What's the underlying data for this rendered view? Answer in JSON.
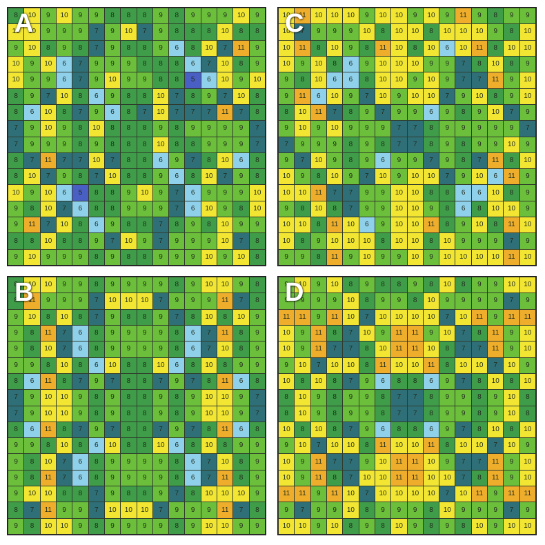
{
  "colors": {
    "5": "#4a5fc4",
    "6": "#8fd0ea",
    "7": "#2f7078",
    "8": "#3f9c48",
    "9": "#6cbf3a",
    "10": "#f2e633",
    "11": "#eeae2c"
  },
  "panels": [
    {
      "label": "A",
      "grid": [
        [
          8,
          10,
          9,
          10,
          9,
          9,
          8,
          8,
          8,
          9,
          8,
          9,
          9,
          9,
          10,
          9
        ],
        [
          10,
          10,
          9,
          9,
          9,
          7,
          9,
          10,
          7,
          9,
          8,
          8,
          8,
          10,
          8,
          8
        ],
        [
          9,
          10,
          8,
          9,
          8,
          7,
          9,
          8,
          8,
          9,
          6,
          8,
          10,
          7,
          11,
          9
        ],
        [
          10,
          9,
          10,
          6,
          7,
          9,
          9,
          9,
          8,
          8,
          8,
          6,
          7,
          10,
          8,
          9
        ],
        [
          10,
          9,
          9,
          6,
          7,
          9,
          10,
          9,
          9,
          8,
          8,
          5,
          6,
          10,
          9,
          10
        ],
        [
          8,
          9,
          7,
          10,
          8,
          6,
          9,
          8,
          8,
          10,
          7,
          8,
          9,
          7,
          10,
          8
        ],
        [
          8,
          6,
          10,
          8,
          7,
          9,
          6,
          8,
          7,
          10,
          7,
          7,
          7,
          11,
          7,
          8
        ],
        [
          7,
          9,
          10,
          9,
          8,
          10,
          8,
          8,
          8,
          9,
          8,
          9,
          9,
          9,
          9,
          7
        ],
        [
          7,
          9,
          9,
          9,
          8,
          9,
          8,
          8,
          8,
          10,
          8,
          8,
          9,
          9,
          9,
          7
        ],
        [
          8,
          7,
          11,
          7,
          7,
          10,
          7,
          8,
          8,
          6,
          9,
          7,
          8,
          10,
          6,
          8
        ],
        [
          8,
          10,
          7,
          9,
          8,
          7,
          10,
          8,
          8,
          9,
          6,
          8,
          10,
          7,
          9,
          8
        ],
        [
          10,
          9,
          10,
          6,
          5,
          8,
          8,
          9,
          10,
          9,
          7,
          6,
          9,
          9,
          9,
          10
        ],
        [
          9,
          8,
          10,
          7,
          6,
          8,
          8,
          9,
          9,
          9,
          7,
          6,
          10,
          9,
          8,
          10
        ],
        [
          9,
          11,
          7,
          10,
          8,
          6,
          9,
          8,
          8,
          7,
          8,
          9,
          8,
          10,
          9,
          9
        ],
        [
          8,
          8,
          10,
          8,
          8,
          9,
          7,
          10,
          9,
          7,
          9,
          9,
          9,
          10,
          7,
          8
        ],
        [
          9,
          10,
          9,
          9,
          9,
          8,
          9,
          8,
          8,
          9,
          9,
          9,
          10,
          9,
          10,
          8
        ]
      ]
    },
    {
      "label": "C",
      "grid": [
        [
          10,
          11,
          10,
          10,
          10,
          9,
          10,
          10,
          9,
          10,
          9,
          11,
          9,
          8,
          9,
          9
        ],
        [
          10,
          7,
          9,
          9,
          9,
          10,
          8,
          10,
          10,
          8,
          10,
          10,
          10,
          9,
          8,
          10
        ],
        [
          10,
          11,
          8,
          10,
          9,
          8,
          11,
          10,
          8,
          10,
          6,
          10,
          11,
          8,
          10,
          10
        ],
        [
          10,
          9,
          10,
          8,
          6,
          9,
          10,
          10,
          10,
          9,
          9,
          7,
          8,
          10,
          8,
          9
        ],
        [
          9,
          8,
          10,
          6,
          6,
          8,
          10,
          10,
          9,
          10,
          9,
          7,
          7,
          11,
          9,
          10
        ],
        [
          9,
          11,
          6,
          10,
          9,
          7,
          10,
          9,
          10,
          10,
          7,
          9,
          10,
          8,
          9,
          10
        ],
        [
          8,
          10,
          11,
          7,
          8,
          9,
          7,
          9,
          9,
          6,
          9,
          8,
          9,
          10,
          7,
          9
        ],
        [
          9,
          10,
          9,
          10,
          9,
          9,
          9,
          7,
          7,
          8,
          9,
          9,
          9,
          9,
          9,
          7
        ],
        [
          7,
          9,
          9,
          9,
          8,
          9,
          8,
          7,
          7,
          8,
          9,
          8,
          9,
          9,
          10,
          9
        ],
        [
          9,
          7,
          10,
          9,
          8,
          9,
          6,
          9,
          9,
          7,
          9,
          8,
          7,
          11,
          8,
          10
        ],
        [
          10,
          9,
          8,
          10,
          9,
          7,
          10,
          9,
          10,
          10,
          7,
          9,
          10,
          6,
          11,
          9
        ],
        [
          10,
          10,
          11,
          7,
          7,
          9,
          9,
          10,
          10,
          8,
          8,
          6,
          6,
          10,
          8,
          9
        ],
        [
          9,
          8,
          10,
          8,
          7,
          9,
          9,
          10,
          10,
          9,
          8,
          6,
          8,
          10,
          10,
          9
        ],
        [
          10,
          10,
          8,
          11,
          10,
          6,
          9,
          10,
          10,
          11,
          8,
          9,
          10,
          8,
          11,
          10
        ],
        [
          10,
          8,
          9,
          10,
          10,
          10,
          8,
          10,
          10,
          8,
          10,
          9,
          9,
          9,
          7,
          9
        ],
        [
          9,
          9,
          8,
          11,
          9,
          10,
          9,
          9,
          10,
          9,
          10,
          10,
          10,
          10,
          11,
          10
        ]
      ]
    },
    {
      "label": "B",
      "grid": [
        [
          8,
          10,
          10,
          9,
          9,
          8,
          9,
          9,
          9,
          9,
          8,
          9,
          10,
          10,
          9,
          8
        ],
        [
          8,
          11,
          9,
          9,
          9,
          7,
          10,
          10,
          10,
          7,
          9,
          9,
          9,
          11,
          7,
          8
        ],
        [
          9,
          10,
          8,
          10,
          8,
          7,
          9,
          8,
          8,
          9,
          7,
          8,
          10,
          8,
          10,
          9
        ],
        [
          9,
          8,
          11,
          7,
          6,
          8,
          9,
          9,
          9,
          9,
          8,
          6,
          7,
          11,
          8,
          9
        ],
        [
          9,
          8,
          10,
          7,
          6,
          8,
          9,
          9,
          9,
          9,
          8,
          6,
          7,
          10,
          8,
          9
        ],
        [
          9,
          9,
          8,
          10,
          8,
          6,
          10,
          8,
          8,
          10,
          6,
          8,
          10,
          8,
          9,
          9
        ],
        [
          8,
          6,
          11,
          8,
          7,
          9,
          7,
          8,
          8,
          7,
          9,
          7,
          8,
          11,
          6,
          8
        ],
        [
          7,
          9,
          10,
          10,
          9,
          8,
          9,
          8,
          8,
          9,
          8,
          9,
          10,
          10,
          9,
          7
        ],
        [
          7,
          9,
          10,
          10,
          9,
          8,
          9,
          8,
          8,
          9,
          8,
          9,
          10,
          10,
          9,
          7
        ],
        [
          8,
          6,
          11,
          8,
          7,
          9,
          7,
          8,
          8,
          7,
          9,
          7,
          8,
          11,
          6,
          8
        ],
        [
          9,
          9,
          8,
          10,
          8,
          6,
          10,
          8,
          8,
          10,
          6,
          8,
          10,
          8,
          9,
          9
        ],
        [
          9,
          8,
          10,
          7,
          6,
          8,
          9,
          9,
          9,
          9,
          8,
          6,
          7,
          10,
          8,
          9
        ],
        [
          9,
          8,
          11,
          7,
          6,
          8,
          9,
          9,
          9,
          9,
          8,
          6,
          7,
          11,
          8,
          9
        ],
        [
          9,
          10,
          10,
          8,
          8,
          7,
          9,
          8,
          8,
          9,
          7,
          8,
          10,
          10,
          10,
          9
        ],
        [
          8,
          7,
          11,
          9,
          9,
          7,
          10,
          10,
          10,
          7,
          9,
          9,
          9,
          11,
          7,
          8
        ],
        [
          9,
          8,
          10,
          10,
          9,
          8,
          9,
          9,
          9,
          9,
          8,
          9,
          10,
          10,
          9,
          9
        ]
      ]
    },
    {
      "label": "D",
      "grid": [
        [
          9,
          10,
          9,
          10,
          8,
          9,
          8,
          8,
          9,
          8,
          10,
          8,
          9,
          9,
          10,
          10
        ],
        [
          9,
          9,
          9,
          9,
          10,
          8,
          9,
          9,
          8,
          10,
          9,
          9,
          9,
          9,
          7,
          9
        ],
        [
          11,
          11,
          9,
          11,
          10,
          7,
          10,
          10,
          10,
          10,
          7,
          10,
          11,
          9,
          11,
          11
        ],
        [
          10,
          9,
          11,
          8,
          7,
          10,
          9,
          11,
          11,
          9,
          10,
          7,
          8,
          11,
          9,
          10
        ],
        [
          10,
          9,
          11,
          7,
          7,
          8,
          10,
          11,
          11,
          10,
          8,
          7,
          7,
          11,
          9,
          10
        ],
        [
          9,
          10,
          7,
          10,
          10,
          8,
          11,
          10,
          10,
          11,
          8,
          10,
          10,
          7,
          10,
          9
        ],
        [
          10,
          8,
          10,
          8,
          7,
          9,
          6,
          8,
          8,
          6,
          9,
          7,
          8,
          10,
          8,
          10
        ],
        [
          8,
          10,
          9,
          8,
          9,
          9,
          8,
          7,
          7,
          8,
          9,
          9,
          8,
          9,
          10,
          8
        ],
        [
          8,
          10,
          9,
          8,
          9,
          9,
          8,
          7,
          7,
          8,
          9,
          9,
          8,
          9,
          10,
          8
        ],
        [
          10,
          8,
          10,
          8,
          7,
          9,
          6,
          8,
          8,
          6,
          9,
          7,
          8,
          10,
          8,
          10
        ],
        [
          9,
          10,
          7,
          10,
          10,
          8,
          11,
          10,
          10,
          11,
          8,
          10,
          10,
          7,
          10,
          9
        ],
        [
          10,
          9,
          11,
          7,
          7,
          9,
          10,
          11,
          11,
          10,
          9,
          7,
          7,
          11,
          9,
          10
        ],
        [
          10,
          9,
          11,
          8,
          7,
          10,
          10,
          11,
          11,
          10,
          10,
          7,
          8,
          11,
          9,
          10
        ],
        [
          11,
          11,
          9,
          11,
          10,
          7,
          10,
          10,
          10,
          10,
          7,
          10,
          11,
          9,
          11,
          11
        ],
        [
          9,
          7,
          9,
          9,
          10,
          8,
          9,
          9,
          9,
          8,
          10,
          9,
          9,
          9,
          7,
          9
        ],
        [
          10,
          10,
          9,
          10,
          8,
          9,
          8,
          10,
          9,
          8,
          9,
          8,
          10,
          9,
          10,
          10
        ]
      ]
    }
  ]
}
